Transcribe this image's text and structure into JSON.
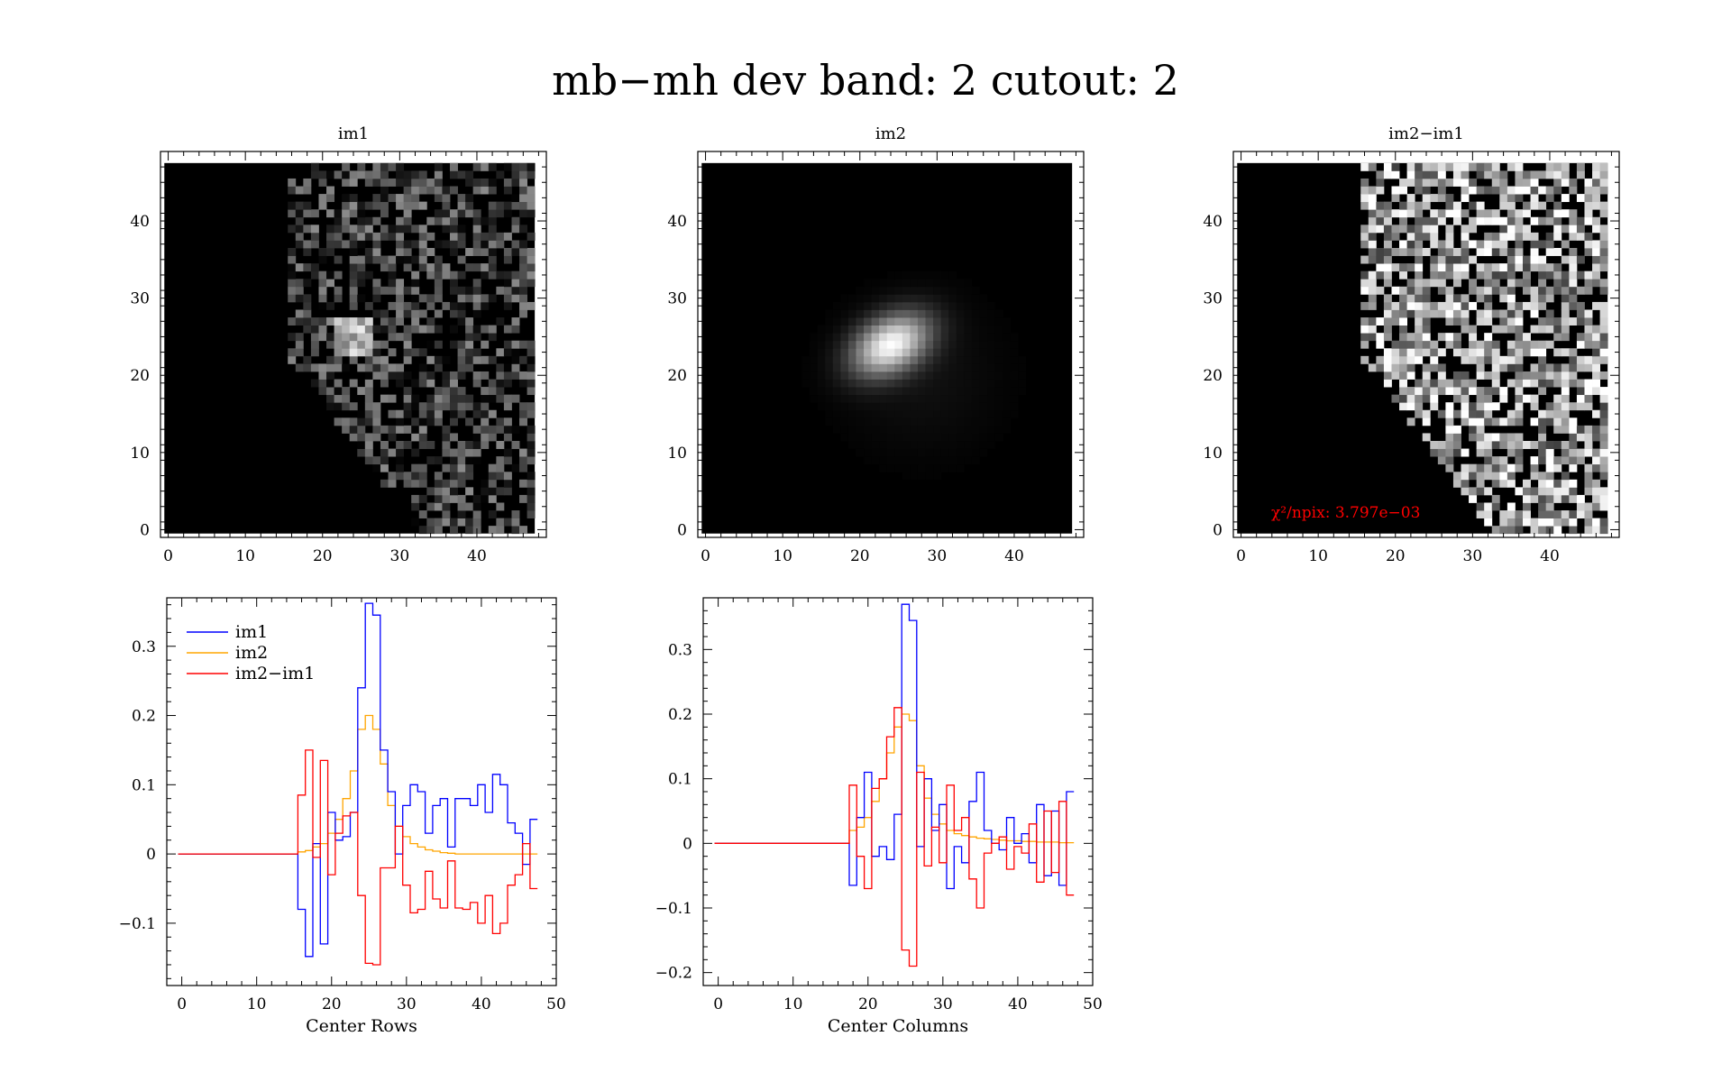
{
  "figure": {
    "title": "mb−mh dev band: 2 cutout: 2"
  },
  "chart_data": [
    {
      "type": "heatmap",
      "title": "im1",
      "xlim": [
        -1,
        49
      ],
      "ylim": [
        -1,
        49
      ],
      "xticks": [
        "0",
        "10",
        "20",
        "30",
        "40"
      ],
      "yticks": [
        "0",
        "10",
        "20",
        "30",
        "40"
      ],
      "grid_size": 48,
      "pattern": "masked-noise-with-source",
      "source_center": [
        24,
        24
      ],
      "mask_edge_col": "left-curve"
    },
    {
      "type": "heatmap",
      "title": "im2",
      "xlim": [
        -1,
        49
      ],
      "ylim": [
        -1,
        49
      ],
      "xticks": [
        "0",
        "10",
        "20",
        "30",
        "40"
      ],
      "yticks": [
        "0",
        "10",
        "20",
        "30",
        "40"
      ],
      "grid_size": 48,
      "pattern": "smooth-gaussian-source",
      "source_center": [
        24,
        24
      ]
    },
    {
      "type": "heatmap",
      "title": "im2−im1",
      "xlim": [
        -1,
        49
      ],
      "ylim": [
        -1,
        49
      ],
      "xticks": [
        "0",
        "10",
        "20",
        "30",
        "40"
      ],
      "yticks": [
        "0",
        "10",
        "20",
        "30",
        "40"
      ],
      "grid_size": 48,
      "pattern": "masked-noise",
      "annotation": "χ²/npix: 3.797e−03",
      "annotation_color": "#ff0000"
    },
    {
      "type": "line",
      "xlabel": "Center Rows",
      "xlim": [
        -2,
        50
      ],
      "ylim": [
        -0.19,
        0.37
      ],
      "xticks": [
        "0",
        "10",
        "20",
        "30",
        "40",
        "50"
      ],
      "yticks": [
        {
          "value": -0.1,
          "label": "−0.1"
        },
        {
          "value": 0,
          "label": "0"
        },
        {
          "value": 0.1,
          "label": "0.1"
        },
        {
          "value": 0.2,
          "label": "0.2"
        },
        {
          "value": 0.3,
          "label": "0.3"
        }
      ],
      "legend_position": "top-left",
      "series": [
        {
          "name": "im1",
          "color": "#0000ff",
          "values": [
            0,
            0,
            0,
            0,
            0,
            0,
            0,
            0,
            0,
            0,
            0,
            0,
            0,
            0,
            0,
            0,
            -0.08,
            -0.148,
            0.015,
            -0.13,
            0.06,
            0.02,
            0.025,
            0.06,
            0.24,
            0.362,
            0.345,
            0.15,
            0.09,
            0.0,
            0.07,
            0.1,
            0.09,
            0.03,
            0.07,
            0.08,
            0.01,
            0.08,
            0.08,
            0.07,
            0.1,
            0.06,
            0.115,
            0.1,
            0.045,
            0.03,
            -0.015,
            0.05
          ]
        },
        {
          "name": "im2",
          "color": "#ffa500",
          "values": [
            0,
            0,
            0,
            0,
            0,
            0,
            0,
            0,
            0,
            0,
            0,
            0,
            0,
            0,
            0,
            0,
            0.003,
            0.005,
            0.01,
            0.015,
            0.03,
            0.05,
            0.08,
            0.12,
            0.18,
            0.2,
            0.18,
            0.13,
            0.07,
            0.04,
            0.025,
            0.015,
            0.01,
            0.006,
            0.004,
            0.002,
            0.001,
            0,
            0,
            0,
            0,
            0,
            0,
            0,
            0,
            0,
            0,
            0
          ]
        },
        {
          "name": "im2−im1",
          "color": "#ff0000",
          "values": [
            0,
            0,
            0,
            0,
            0,
            0,
            0,
            0,
            0,
            0,
            0,
            0,
            0,
            0,
            0,
            0,
            0.085,
            0.15,
            -0.005,
            0.135,
            -0.03,
            0.03,
            0.055,
            0.06,
            -0.06,
            -0.158,
            -0.16,
            -0.02,
            -0.02,
            0.04,
            -0.045,
            -0.085,
            -0.08,
            -0.025,
            -0.065,
            -0.078,
            -0.01,
            -0.078,
            -0.08,
            -0.07,
            -0.1,
            -0.06,
            -0.115,
            -0.1,
            -0.045,
            -0.03,
            0.015,
            -0.05
          ]
        }
      ]
    },
    {
      "type": "line",
      "xlabel": "Center Columns",
      "xlim": [
        -2,
        50
      ],
      "ylim": [
        -0.22,
        0.38
      ],
      "xticks": [
        "0",
        "10",
        "20",
        "30",
        "40",
        "50"
      ],
      "yticks": [
        {
          "value": -0.2,
          "label": "−0.2"
        },
        {
          "value": -0.1,
          "label": "−0.1"
        },
        {
          "value": 0,
          "label": "0"
        },
        {
          "value": 0.1,
          "label": "0.1"
        },
        {
          "value": 0.2,
          "label": "0.2"
        },
        {
          "value": 0.3,
          "label": "0.3"
        }
      ],
      "series": [
        {
          "name": "im1",
          "color": "#0000ff",
          "values": [
            0,
            0,
            0,
            0,
            0,
            0,
            0,
            0,
            0,
            0,
            0,
            0,
            0,
            0,
            0,
            0,
            0,
            0,
            -0.065,
            0.04,
            0.11,
            -0.02,
            -0.005,
            -0.025,
            0.045,
            0.37,
            0.345,
            -0.005,
            0.1,
            0.02,
            0.06,
            -0.07,
            -0.005,
            -0.03,
            0.065,
            0.11,
            0.02,
            0.0,
            -0.01,
            0.04,
            0.0,
            0.015,
            -0.03,
            0.06,
            -0.05,
            0.05,
            -0.065,
            0.08
          ]
        },
        {
          "name": "im2",
          "color": "#ffa500",
          "values": [
            0,
            0,
            0,
            0,
            0,
            0,
            0,
            0,
            0,
            0,
            0,
            0,
            0,
            0,
            0,
            0,
            0,
            0,
            0.02,
            0.025,
            0.04,
            0.065,
            0.1,
            0.14,
            0.18,
            0.2,
            0.19,
            0.12,
            0.07,
            0.045,
            0.03,
            0.02,
            0.015,
            0.012,
            0.01,
            0.008,
            0.007,
            0.006,
            0.005,
            0.004,
            0.004,
            0.003,
            0.003,
            0.002,
            0.002,
            0.002,
            0.001,
            0.001
          ]
        },
        {
          "name": "im2−im1",
          "color": "#ff0000",
          "values": [
            0,
            0,
            0,
            0,
            0,
            0,
            0,
            0,
            0,
            0,
            0,
            0,
            0,
            0,
            0,
            0,
            0,
            0,
            0.09,
            -0.02,
            -0.07,
            0.085,
            0.1,
            0.165,
            0.21,
            -0.165,
            -0.19,
            0.11,
            -0.035,
            0.025,
            -0.03,
            0.09,
            0.02,
            0.04,
            -0.055,
            -0.1,
            -0.015,
            0.0,
            0.01,
            -0.04,
            -0.005,
            -0.015,
            0.03,
            -0.06,
            0.05,
            -0.045,
            0.065,
            -0.08
          ]
        }
      ]
    }
  ]
}
